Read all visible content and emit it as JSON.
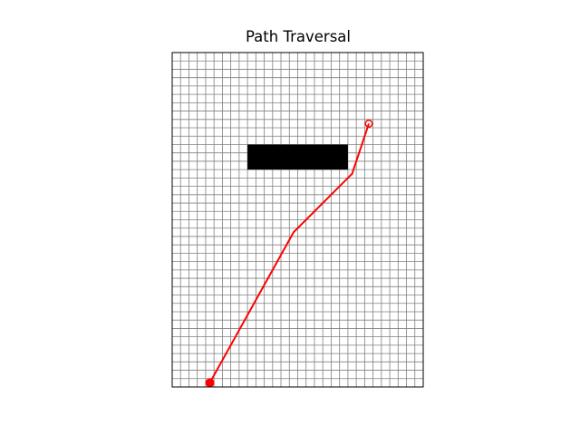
{
  "chart_data": {
    "type": "line",
    "title": "Path Traversal",
    "xlabel": "",
    "ylabel": "",
    "xlim": [
      0,
      30
    ],
    "ylim": [
      0,
      40
    ],
    "grid": true,
    "axis_ticks_visible": false,
    "obstacle": {
      "x_range": [
        9,
        21
      ],
      "y_range": [
        26,
        29
      ],
      "color": "#000000"
    },
    "series": [
      {
        "type": "path",
        "color": "#ff0000",
        "points": [
          {
            "x": 4.5,
            "y": 0.5
          },
          {
            "x": 14.5,
            "y": 18.5
          },
          {
            "x": 21.5,
            "y": 25.5
          },
          {
            "x": 23.5,
            "y": 31.5
          }
        ]
      }
    ],
    "start": {
      "x": 4.5,
      "y": 0.5,
      "marker": "filled-circle",
      "color": "#ff0000"
    },
    "goal": {
      "x": 23.5,
      "y": 31.5,
      "marker": "hollow-circle",
      "color": "#ff0000"
    },
    "colors": {
      "grid": "#808080",
      "frame": "#000000"
    }
  }
}
